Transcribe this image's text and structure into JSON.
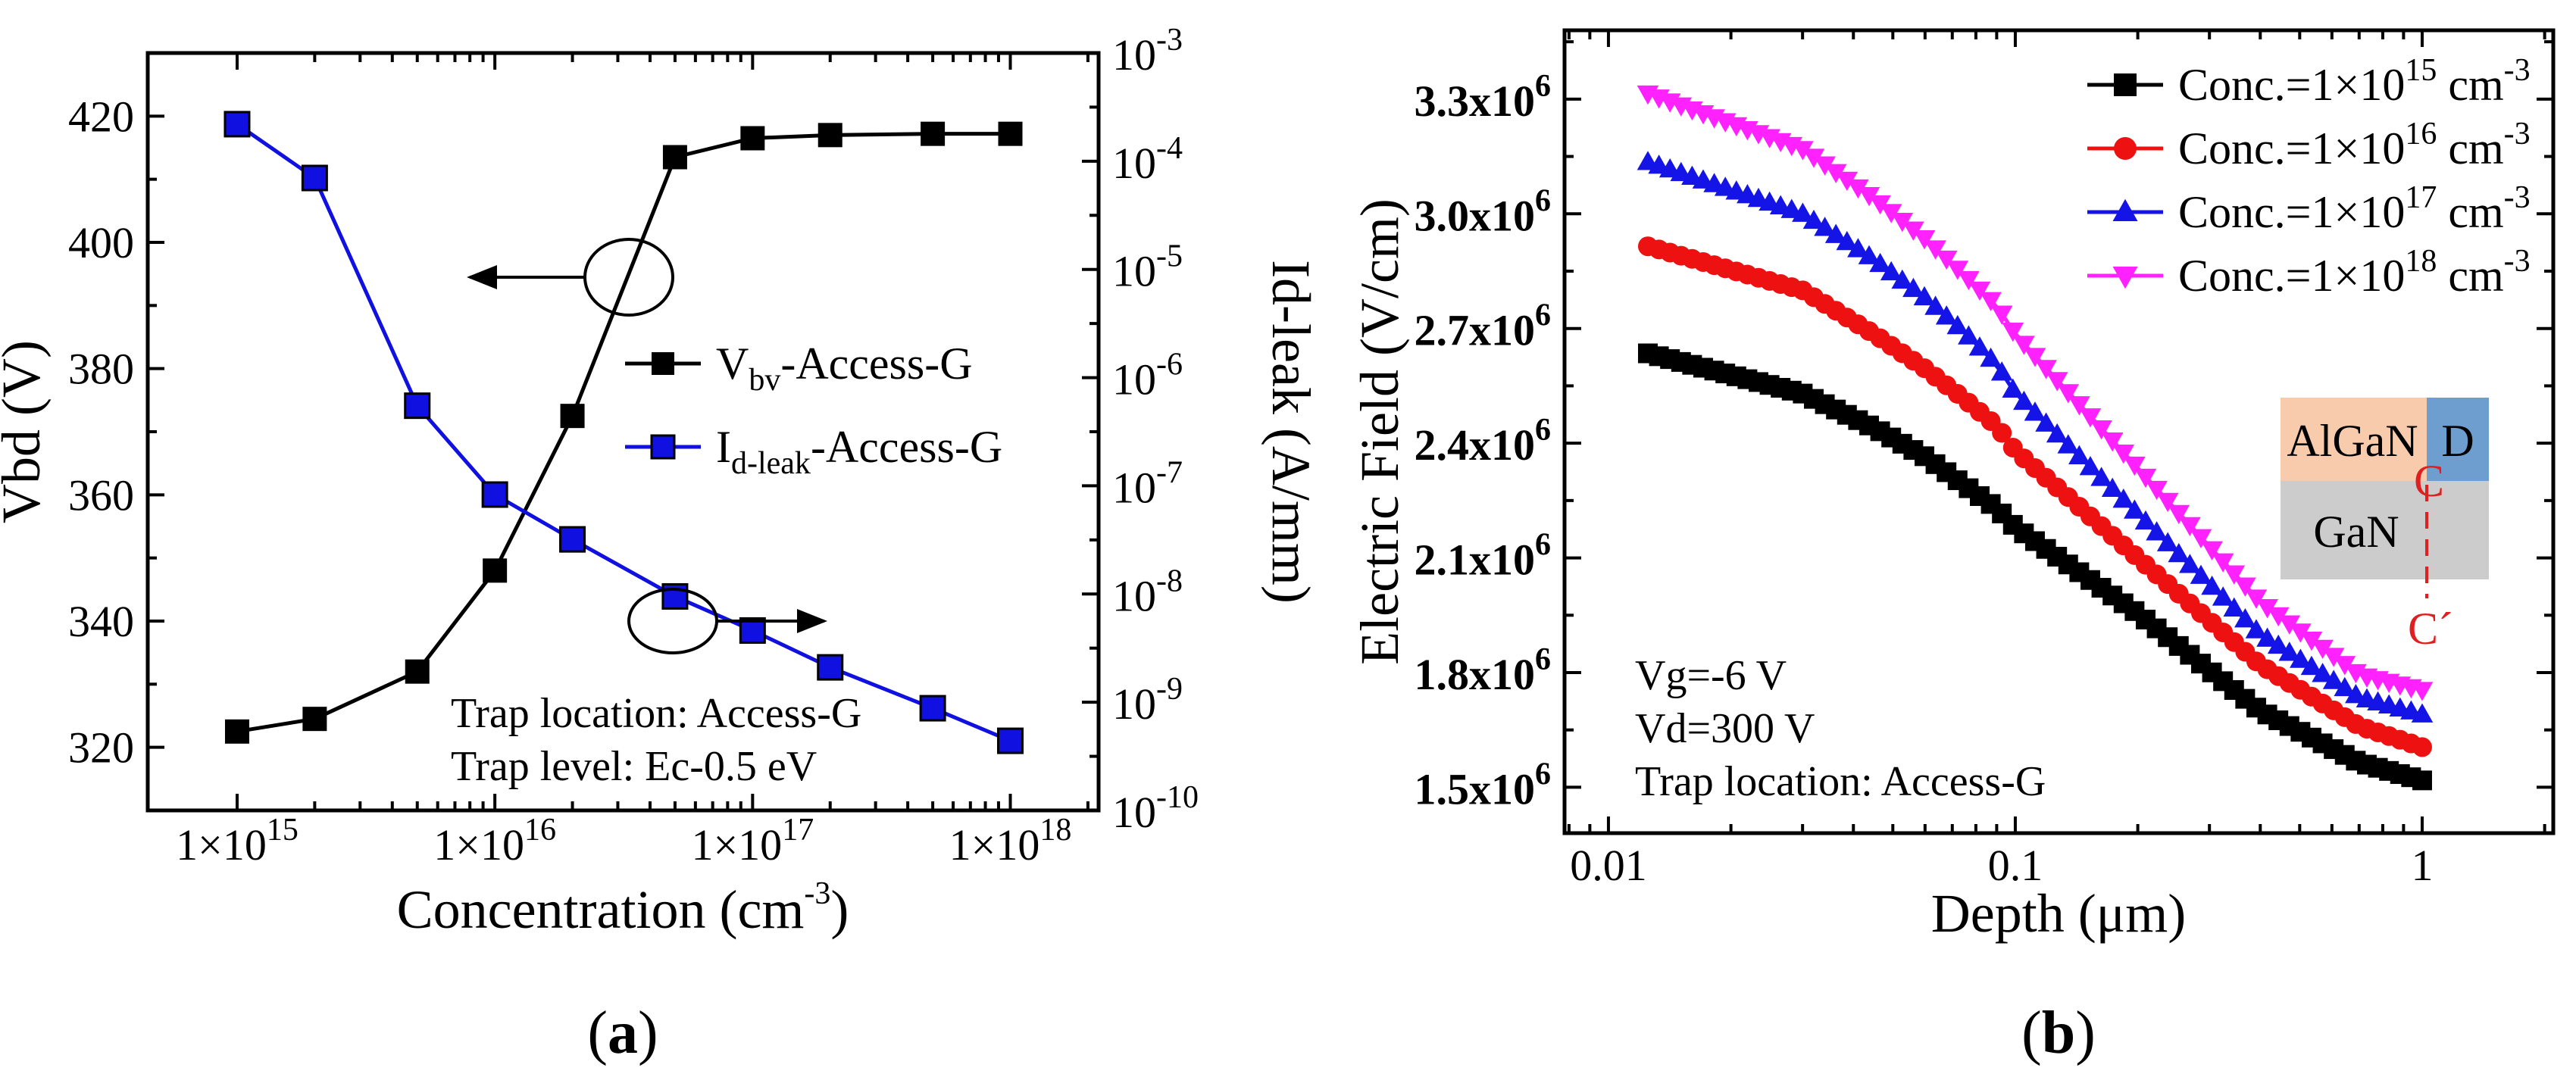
{
  "chart_data": [
    {
      "panel": "a",
      "type": "line",
      "caption": "a",
      "x": [
        1000000000000000.0,
        2000000000000000.0,
        5000000000000000.0,
        1e+16,
        2e+16,
        5e+16,
        1e+17,
        2e+17,
        5e+17,
        1e+18
      ],
      "x_tick_labels": [
        "1×10",
        "1×10",
        "1×10",
        "1×10"
      ],
      "x_tick_exponents": [
        "15",
        "16",
        "17",
        "18"
      ],
      "x_scale": "log",
      "xlim": [
        450000000000000.0,
        2.2e+18
      ],
      "xlabel": "Concentration (cm",
      "xlabel_sup": "-3",
      "xlabel_end": ")",
      "ylabel": "Vbd (V)",
      "ylim": [
        310,
        430
      ],
      "y_ticks": [
        "320",
        "340",
        "360",
        "380",
        "400",
        "420"
      ],
      "y2label": "Id-leak (A/mm)",
      "y2_scale": "log",
      "y2lim": [
        1e-10,
        0.001
      ],
      "y2_tick_base": "10",
      "y2_tick_exponents": [
        "-10",
        "-9",
        "-8",
        "-7",
        "-6",
        "-5",
        "-4",
        "-3"
      ],
      "series": [
        {
          "name": "V",
          "name_sub": "bv",
          "name_rest": "-Access-G",
          "axis": "left",
          "color": "#000000",
          "values": [
            322.5,
            324.5,
            332,
            348,
            372.5,
            413.5,
            416.5,
            417,
            417.2,
            417.2
          ]
        },
        {
          "name": "I",
          "name_sub": "d-leak",
          "name_rest": "-Access-G",
          "axis": "right",
          "color": "#1010e0",
          "values": [
            0.00022,
            7e-05,
            5.5e-07,
            8.3e-08,
            3.2e-08,
            9.5e-09,
            4.6e-09,
            2.1e-09,
            8.8e-10,
            4.4e-10
          ]
        }
      ],
      "annotations": [
        "Trap location: Access-G",
        "Trap level: Ec-0.5 eV"
      ]
    },
    {
      "panel": "b",
      "type": "line",
      "caption": "b",
      "x_scale": "log",
      "xlim": [
        0.0078,
        2.1
      ],
      "x_ticks": [
        "0.01",
        "0.1",
        "1"
      ],
      "xlabel": "Depth (μm)",
      "ylabel": "Electric Field (V/cm)",
      "ylim": [
        1380000,
        3480000
      ],
      "y_tick_mantissas": [
        "1.5x10",
        "1.8x10",
        "2.1x10",
        "2.4x10",
        "2.7x10",
        "3.0x10",
        "3.3x10"
      ],
      "y_tick_exponent": "6",
      "x": [
        0.0125,
        0.03,
        0.045,
        0.06,
        0.075,
        0.09,
        0.1,
        0.2,
        0.4,
        0.7,
        1.0
      ],
      "series": [
        {
          "name": "Conc.=1×10",
          "exp": "15",
          "unit": " cm",
          "unit_exp": "-3",
          "color": "#000000",
          "marker": "square",
          "values": [
            2635000,
            2530000,
            2440000,
            2365000,
            2290000,
            2230000,
            2180000,
            1955000,
            1700000,
            1565000,
            1518000
          ]
        },
        {
          "name": "Conc.=1×10",
          "exp": "16",
          "unit": " cm",
          "unit_exp": "-3",
          "color": "#ee1111",
          "marker": "circle",
          "values": [
            2915000,
            2800000,
            2685000,
            2595000,
            2515000,
            2445000,
            2380000,
            2100000,
            1820000,
            1660000,
            1605000
          ]
        },
        {
          "name": "Conc.=1×10",
          "exp": "17",
          "unit": " cm",
          "unit_exp": "-3",
          "color": "#1414e6",
          "marker": "triangle-up",
          "values": [
            3135000,
            3000000,
            2880000,
            2780000,
            2690000,
            2605000,
            2530000,
            2215000,
            1900000,
            1735000,
            1690000
          ]
        },
        {
          "name": "Conc.=1×10",
          "exp": "18",
          "unit": " cm",
          "unit_exp": "-3",
          "color": "#ff22ff",
          "marker": "triangle-down",
          "values": [
            3315000,
            3170000,
            3040000,
            2935000,
            2840000,
            2760000,
            2685000,
            2335000,
            1985000,
            1795000,
            1755000
          ]
        }
      ],
      "annotations": [
        "Vg=-6 V",
        "Vd=300 V",
        "Trap location: Access-G"
      ],
      "inset": {
        "layer_top": "AlGaN",
        "layer_bottom": "GaN",
        "contact": "D",
        "cut_start": "C",
        "cut_end": "C´",
        "color_top": "#f8cbad",
        "color_bottom": "#cccccc",
        "color_contact": "#6e9ecf",
        "color_cut": "#e02020"
      }
    }
  ]
}
